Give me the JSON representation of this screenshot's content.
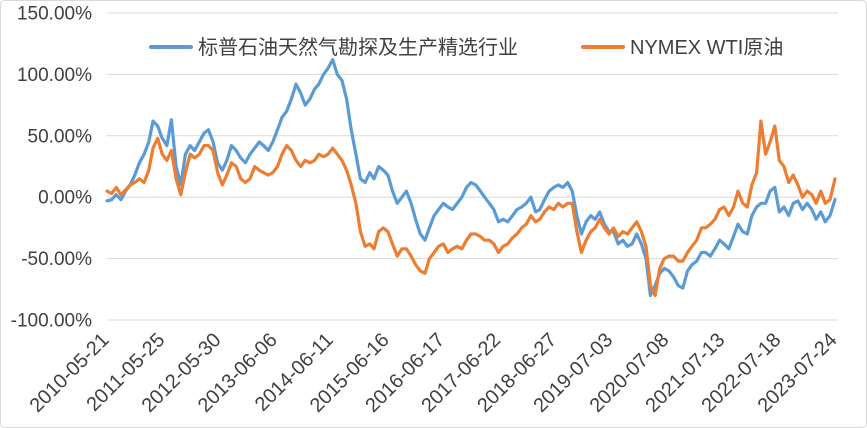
{
  "chart_data": {
    "type": "line",
    "legend": "top",
    "grid": "horizontal",
    "ylim": [
      -100,
      150
    ],
    "yticks": [
      150,
      100,
      50,
      0,
      -50,
      -100
    ],
    "ytick_labels": [
      "150.00%",
      "100.00%",
      "50.00%",
      "0.00%",
      "-50.00%",
      "-100.00%"
    ],
    "xlim": [
      "2010-05-21",
      "2023-07-24"
    ],
    "xticks": [
      "2010-05-21",
      "2011-05-25",
      "2012-05-30",
      "2013-06-06",
      "2014-06-11",
      "2015-06-16",
      "2016-06-17",
      "2017-06-22",
      "2018-06-27",
      "2019-07-03",
      "2020-07-08",
      "2021-07-13",
      "2022-07-18",
      "2023-07-24"
    ],
    "x": [
      "2010-05-21",
      "2010-06-21",
      "2010-07-21",
      "2010-08-21",
      "2010-09-21",
      "2010-10-21",
      "2010-11-21",
      "2010-12-21",
      "2011-01-21",
      "2011-02-21",
      "2011-03-21",
      "2011-04-21",
      "2011-05-21",
      "2011-06-21",
      "2011-07-21",
      "2011-08-21",
      "2011-09-21",
      "2011-10-21",
      "2011-11-21",
      "2011-12-21",
      "2012-01-21",
      "2012-02-21",
      "2012-03-21",
      "2012-04-21",
      "2012-05-21",
      "2012-06-21",
      "2012-07-21",
      "2012-08-21",
      "2012-09-21",
      "2012-10-21",
      "2012-11-21",
      "2012-12-21",
      "2013-01-21",
      "2013-02-21",
      "2013-03-21",
      "2013-04-21",
      "2013-05-21",
      "2013-06-21",
      "2013-07-21",
      "2013-08-21",
      "2013-09-21",
      "2013-10-21",
      "2013-11-21",
      "2013-12-21",
      "2014-01-21",
      "2014-02-21",
      "2014-03-21",
      "2014-04-21",
      "2014-05-21",
      "2014-06-21",
      "2014-07-21",
      "2014-08-21",
      "2014-09-21",
      "2014-10-21",
      "2014-11-21",
      "2014-12-21",
      "2015-01-21",
      "2015-02-21",
      "2015-03-21",
      "2015-04-21",
      "2015-05-21",
      "2015-06-21",
      "2015-07-21",
      "2015-08-21",
      "2015-09-21",
      "2015-10-21",
      "2015-11-21",
      "2015-12-21",
      "2016-01-21",
      "2016-02-21",
      "2016-03-21",
      "2016-04-21",
      "2016-05-21",
      "2016-06-21",
      "2016-07-21",
      "2016-08-21",
      "2016-09-21",
      "2016-10-21",
      "2016-11-21",
      "2016-12-21",
      "2017-01-21",
      "2017-02-21",
      "2017-03-21",
      "2017-04-21",
      "2017-05-21",
      "2017-06-21",
      "2017-07-21",
      "2017-08-21",
      "2017-09-21",
      "2017-10-21",
      "2017-11-21",
      "2017-12-21",
      "2018-01-21",
      "2018-02-21",
      "2018-03-21",
      "2018-04-21",
      "2018-05-21",
      "2018-06-21",
      "2018-07-21",
      "2018-08-21",
      "2018-09-21",
      "2018-10-21",
      "2018-11-21",
      "2018-12-21",
      "2019-01-21",
      "2019-02-21",
      "2019-03-21",
      "2019-04-21",
      "2019-05-21",
      "2019-06-21",
      "2019-07-21",
      "2019-08-21",
      "2019-09-21",
      "2019-10-21",
      "2019-11-21",
      "2019-12-21",
      "2020-01-21",
      "2020-02-21",
      "2020-03-21",
      "2020-04-21",
      "2020-05-21",
      "2020-06-21",
      "2020-07-21",
      "2020-08-21",
      "2020-09-21",
      "2020-10-21",
      "2020-11-21",
      "2020-12-21",
      "2021-01-21",
      "2021-02-21",
      "2021-03-21",
      "2021-04-21",
      "2021-05-21",
      "2021-06-21",
      "2021-07-21",
      "2021-08-21",
      "2021-09-21",
      "2021-10-21",
      "2021-11-21",
      "2021-12-21",
      "2022-01-21",
      "2022-02-21",
      "2022-03-21",
      "2022-04-21",
      "2022-05-21",
      "2022-06-21",
      "2022-07-21",
      "2022-08-21",
      "2022-09-21",
      "2022-10-21",
      "2022-11-21",
      "2022-12-21",
      "2023-01-21",
      "2023-02-21",
      "2023-03-21",
      "2023-04-21",
      "2023-05-21",
      "2023-06-21",
      "2023-07-24"
    ],
    "series": [
      {
        "name": "标普石油天然气勘探及生产精选行业",
        "color": "#5B9BD5",
        "values": [
          -3,
          -2,
          2,
          -2,
          5,
          10,
          18,
          28,
          35,
          45,
          62,
          58,
          48,
          42,
          63,
          25,
          10,
          35,
          42,
          38,
          45,
          52,
          55,
          45,
          28,
          22,
          30,
          42,
          38,
          32,
          28,
          35,
          40,
          45,
          42,
          38,
          45,
          55,
          65,
          70,
          80,
          92,
          85,
          75,
          80,
          88,
          92,
          100,
          105,
          112,
          100,
          95,
          80,
          55,
          35,
          15,
          12,
          20,
          15,
          25,
          22,
          18,
          5,
          -5,
          0,
          5,
          -5,
          -18,
          -30,
          -35,
          -25,
          -15,
          -10,
          -5,
          -8,
          -10,
          -5,
          0,
          8,
          12,
          10,
          5,
          0,
          -5,
          -10,
          -20,
          -18,
          -20,
          -15,
          -10,
          -8,
          -5,
          0,
          -12,
          -10,
          -2,
          5,
          8,
          10,
          8,
          12,
          5,
          -15,
          -30,
          -20,
          -15,
          -18,
          -12,
          -22,
          -28,
          -28,
          -38,
          -35,
          -40,
          -38,
          -30,
          -38,
          -50,
          -80,
          -72,
          -62,
          -58,
          -60,
          -65,
          -72,
          -74,
          -60,
          -55,
          -52,
          -45,
          -45,
          -48,
          -42,
          -35,
          -38,
          -42,
          -32,
          -22,
          -28,
          -30,
          -15,
          -8,
          -5,
          -5,
          5,
          8,
          -12,
          -8,
          -15,
          -5,
          -3,
          -10,
          -5,
          -10,
          -18,
          -12,
          -20,
          -15,
          -2
        ]
      },
      {
        "name": "NYMEX WTI原油",
        "color": "#ED7D31",
        "values": [
          5,
          3,
          8,
          2,
          6,
          10,
          12,
          15,
          12,
          22,
          40,
          48,
          35,
          30,
          38,
          15,
          2,
          20,
          35,
          32,
          35,
          42,
          42,
          38,
          20,
          10,
          18,
          28,
          25,
          15,
          12,
          15,
          25,
          22,
          20,
          18,
          20,
          25,
          35,
          42,
          38,
          30,
          25,
          30,
          28,
          30,
          35,
          33,
          35,
          40,
          35,
          30,
          22,
          10,
          -5,
          -28,
          -40,
          -38,
          -42,
          -28,
          -25,
          -28,
          -38,
          -48,
          -42,
          -42,
          -48,
          -55,
          -60,
          -62,
          -50,
          -45,
          -40,
          -38,
          -45,
          -42,
          -40,
          -42,
          -35,
          -30,
          -30,
          -32,
          -35,
          -35,
          -38,
          -45,
          -40,
          -38,
          -33,
          -30,
          -25,
          -22,
          -15,
          -20,
          -18,
          -12,
          -8,
          -10,
          -5,
          -8,
          -5,
          -5,
          -28,
          -45,
          -35,
          -28,
          -25,
          -18,
          -25,
          -30,
          -25,
          -32,
          -28,
          -30,
          -25,
          -20,
          -28,
          -40,
          -72,
          -80,
          -58,
          -50,
          -48,
          -48,
          -52,
          -52,
          -45,
          -40,
          -35,
          -25,
          -25,
          -22,
          -18,
          -10,
          -8,
          -15,
          -8,
          5,
          -5,
          -8,
          10,
          20,
          62,
          35,
          45,
          58,
          30,
          25,
          12,
          18,
          10,
          0,
          5,
          2,
          -5,
          5,
          -5,
          -2,
          15
        ]
      }
    ]
  }
}
